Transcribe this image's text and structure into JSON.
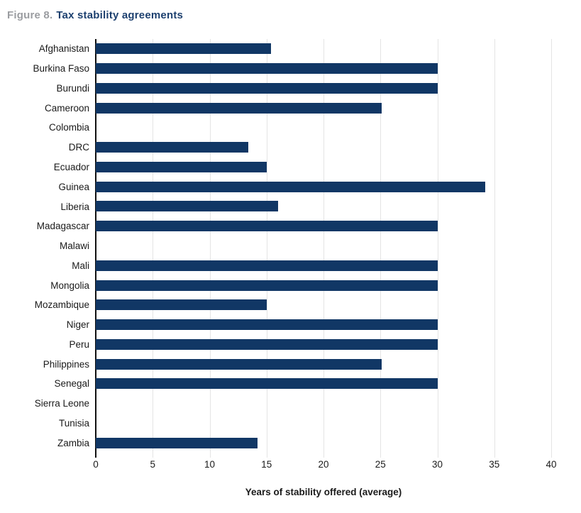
{
  "title": {
    "figure_label": "Figure 8.",
    "text": "Tax stability agreements"
  },
  "chart_data": {
    "type": "bar",
    "orientation": "horizontal",
    "title": "Figure 8. Tax stability agreements",
    "categories": [
      "Afghanistan",
      "Burkina Faso",
      "Burundi",
      "Cameroon",
      "Colombia",
      "DRC",
      "Ecuador",
      "Guinea",
      "Liberia",
      "Madagascar",
      "Malawi",
      "Mali",
      "Mongolia",
      "Mozambique",
      "Niger",
      "Peru",
      "Philippines",
      "Senegal",
      "Sierra Leone",
      "Tunisia",
      "Zambia"
    ],
    "values": [
      15.4,
      30,
      30,
      25.1,
      0,
      13.4,
      15,
      34.2,
      16,
      30,
      0,
      30,
      30,
      15,
      30,
      30,
      25.1,
      30,
      0,
      0,
      14.2
    ],
    "xlabel": "Years of stability offered (average)",
    "ylabel": "",
    "xlim": [
      0,
      40
    ],
    "xticks": [
      0,
      5,
      10,
      15,
      20,
      25,
      30,
      35,
      40
    ],
    "grid": "vertical",
    "legend": "none"
  },
  "colors": {
    "bar": "#113765",
    "title_text": "#1d406f",
    "figure_label": "#9b9da1",
    "text": "#1a1a1a",
    "gridline": "#e4e4e4",
    "axis": "#111111"
  }
}
